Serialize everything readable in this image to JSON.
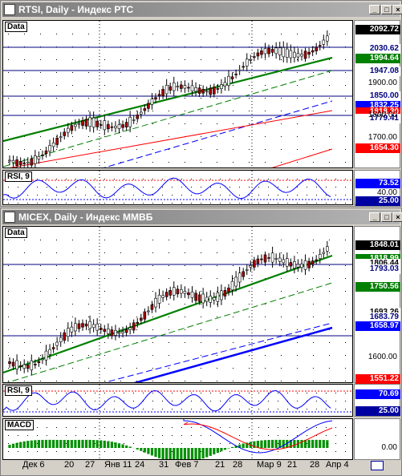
{
  "windows": [
    {
      "title": "RTSI, Daily - Индекс РТС",
      "buttons": [
        "_",
        "□",
        "×"
      ],
      "price_label": "Data",
      "price_tags": [
        {
          "value": "2092.72",
          "color": "#000000",
          "text": "#ffffff"
        },
        {
          "value": "2030.62",
          "color": "#ffffff",
          "text": "#000080"
        },
        {
          "value": "1994.64",
          "color": "#008000",
          "text": "#ffffff"
        },
        {
          "value": "1947.08",
          "color": "#ffffff",
          "text": "#000080"
        },
        {
          "value": "1850.00",
          "color": "#ffffff",
          "text": "#000080"
        },
        {
          "value": "1832.25",
          "color": "#0000ff",
          "text": "#ffffff"
        },
        {
          "value": "1818.30",
          "color": "#ff0000",
          "text": "#ffffff"
        },
        {
          "value": "1779.41",
          "color": "#ffffff",
          "text": "#000080"
        },
        {
          "value": "1654.30",
          "color": "#ff0000",
          "text": "#ffffff"
        }
      ],
      "price_ticks": [
        "1900.00",
        "1800.00",
        "1700.00"
      ],
      "rsi_label": "RSI, 9",
      "rsi_tags": [
        {
          "value": "73.52",
          "color": "#0000ff",
          "text": "#ffffff"
        },
        {
          "value": "25.00",
          "color": "#0000a0",
          "text": "#ffffff"
        }
      ],
      "rsi_ticks": [
        "40.00"
      ]
    },
    {
      "title": "MICEX, Daily - Индекс ММВБ",
      "buttons": [
        "_",
        "□",
        "×"
      ],
      "price_label": "Data",
      "price_tags": [
        {
          "value": "1848.01",
          "color": "#000000",
          "text": "#ffffff"
        },
        {
          "value": "1818.99",
          "color": "#008000",
          "text": "#ffffff"
        },
        {
          "value": "1806.44",
          "color": "#ffffff",
          "text": "#000000"
        },
        {
          "value": "1793.03",
          "color": "#ffffff",
          "text": "#000080"
        },
        {
          "value": "1750.56",
          "color": "#008000",
          "text": "#ffffff"
        },
        {
          "value": "1693.26",
          "color": "#ffffff",
          "text": "#000000"
        },
        {
          "value": "1683.79",
          "color": "#ffffff",
          "text": "#000080"
        },
        {
          "value": "1658.97",
          "color": "#0000ff",
          "text": "#ffffff"
        },
        {
          "value": "1551.22",
          "color": "#ff0000",
          "text": "#ffffff"
        }
      ],
      "price_ticks": [
        "1600.00"
      ],
      "rsi_label": "RSI, 9",
      "rsi_tags": [
        {
          "value": "70.69",
          "color": "#0000ff",
          "text": "#ffffff"
        },
        {
          "value": "25.00",
          "color": "#0000a0",
          "text": "#ffffff"
        }
      ],
      "macd_label": "MACD",
      "macd_ticks": [
        "0.00"
      ]
    }
  ],
  "x_axis": [
    "Дек 6",
    "20",
    "27",
    "Янв 11",
    "24",
    "31",
    "Фев 7",
    "21",
    "28",
    "Мар 9",
    "21",
    "28",
    "Апр 4"
  ]
}
